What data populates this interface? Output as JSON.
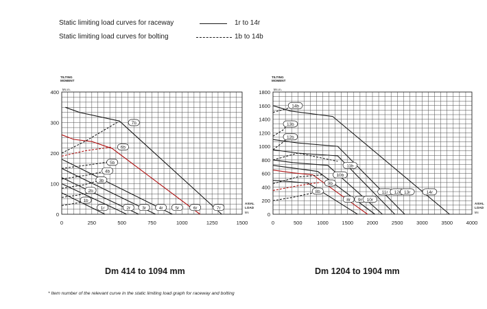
{
  "legend": {
    "raceway_label": "Static limiting load curves for raceway",
    "raceway_range": "1r to 14r",
    "bolting_label": "Static limiting load curves for bolting",
    "bolting_range": "1b to 14b"
  },
  "footnote": "* Item number of the relevant curve in the static limiting load graph for raceway and bolting",
  "colors": {
    "line": "#1a1a1a",
    "highlight": "#b01010",
    "grid": "#4a4a4a"
  },
  "chart_data": [
    {
      "type": "line",
      "title": "Dm 414 to 1094 mm",
      "ylabel": [
        "TILTING",
        "MOMENT"
      ],
      "yunit": "kN.m.",
      "xlabel": [
        "AXIAL",
        "LOAD"
      ],
      "xunit": "kN",
      "xlim": [
        0,
        1500
      ],
      "ylim": [
        0,
        400
      ],
      "x_ticks": [
        0,
        250,
        500,
        750,
        1000,
        1250,
        1500
      ],
      "y_ticks": [
        0,
        100,
        200,
        300,
        400
      ],
      "grid": true,
      "series": [
        {
          "name": "1r",
          "style": "solid",
          "points": [
            [
              0,
              70
            ],
            [
              360,
              0
            ]
          ],
          "label_at": [
            340,
            22
          ]
        },
        {
          "name": "2r",
          "style": "solid",
          "points": [
            [
              0,
              100
            ],
            [
              540,
              0
            ]
          ],
          "label_at": [
            555,
            22
          ]
        },
        {
          "name": "3r",
          "style": "solid",
          "points": [
            [
              0,
              120
            ],
            [
              640,
              0
            ]
          ],
          "label_at": [
            685,
            22
          ]
        },
        {
          "name": "4r",
          "style": "solid",
          "points": [
            [
              0,
              150
            ],
            [
              780,
              0
            ]
          ],
          "label_at": [
            825,
            22
          ]
        },
        {
          "name": "5r",
          "style": "solid",
          "points": [
            [
              0,
              180
            ],
            [
              920,
              0
            ]
          ],
          "label_at": [
            960,
            22
          ]
        },
        {
          "name": "6r",
          "style": "solid",
          "color": "highlight",
          "points": [
            [
              0,
              260
            ],
            [
              100,
              245
            ],
            [
              250,
              238
            ],
            [
              420,
              215
            ],
            [
              1150,
              0
            ]
          ],
          "label_at": [
            1110,
            22
          ]
        },
        {
          "name": "7r",
          "style": "solid",
          "points": [
            [
              30,
              350
            ],
            [
              150,
              333
            ],
            [
              480,
              305
            ],
            [
              1330,
              0
            ]
          ],
          "label_at": [
            1305,
            22
          ]
        },
        {
          "name": "1b",
          "style": "dashed",
          "points": [
            [
              0,
              28
            ],
            [
              100,
              35
            ],
            [
              240,
              44
            ]
          ],
          "label_at": [
            200,
            46
          ]
        },
        {
          "name": "2b",
          "style": "dashed",
          "points": [
            [
              0,
              55
            ],
            [
              140,
              63
            ],
            [
              280,
              76
            ]
          ],
          "label_at": [
            240,
            78
          ]
        },
        {
          "name": "3b",
          "style": "dashed",
          "points": [
            [
              0,
              85
            ],
            [
              180,
              96
            ],
            [
              330,
              112
            ]
          ],
          "label_at": [
            330,
            112
          ]
        },
        {
          "name": "4b",
          "style": "dashed",
          "points": [
            [
              0,
              115
            ],
            [
              210,
              128
            ],
            [
              380,
              142
            ]
          ],
          "label_at": [
            380,
            142
          ]
        },
        {
          "name": "5b",
          "style": "dashed",
          "points": [
            [
              0,
              150
            ],
            [
              250,
              163
            ],
            [
              420,
              173
            ]
          ],
          "label_at": [
            420,
            170
          ]
        },
        {
          "name": "6b",
          "style": "dashed",
          "color": "highlight",
          "points": [
            [
              0,
              190
            ],
            [
              200,
              208
            ],
            [
              420,
              220
            ]
          ],
          "label_at": [
            510,
            220
          ]
        },
        {
          "name": "7b",
          "style": "dashed",
          "points": [
            [
              0,
              200
            ],
            [
              200,
              240
            ],
            [
              480,
              305
            ]
          ],
          "label_at": [
            600,
            300
          ]
        }
      ]
    },
    {
      "type": "line",
      "title": "Dm 1204 to 1904 mm",
      "ylabel": [
        "TILTING",
        "MOMENT"
      ],
      "yunit": "kN.m.",
      "xlabel": [
        "AXIAL",
        "LOAD"
      ],
      "xunit": "kN",
      "xlim": [
        0,
        4000
      ],
      "ylim": [
        0,
        1800
      ],
      "x_ticks": [
        0,
        500,
        1000,
        1500,
        2000,
        2500,
        3000,
        3500,
        4000
      ],
      "y_ticks": [
        0,
        200,
        400,
        600,
        800,
        1000,
        1200,
        1400,
        1600,
        1800
      ],
      "grid": true,
      "series": [
        {
          "name": "8r",
          "style": "solid",
          "points": [
            [
              0,
              500
            ],
            [
              700,
              460
            ],
            [
              1700,
              0
            ]
          ],
          "label_at": [
            1520,
            220
          ]
        },
        {
          "name": "9r",
          "style": "solid",
          "color": "highlight",
          "points": [
            [
              0,
              650
            ],
            [
              400,
              610
            ],
            [
              800,
              580
            ],
            [
              1900,
              0
            ]
          ],
          "label_at": [
            1750,
            220
          ]
        },
        {
          "name": "10r",
          "style": "solid",
          "points": [
            [
              0,
              720
            ],
            [
              500,
              670
            ],
            [
              900,
              630
            ],
            [
              2050,
              0
            ]
          ],
          "label_at": [
            1950,
            220
          ]
        },
        {
          "name": "11r",
          "style": "solid",
          "points": [
            [
              0,
              800
            ],
            [
              400,
              760
            ],
            [
              1100,
              720
            ],
            [
              2200,
              0
            ]
          ],
          "label_at": [
            2250,
            330
          ]
        },
        {
          "name": "12r",
          "style": "solid",
          "points": [
            [
              0,
              950
            ],
            [
              500,
              900
            ],
            [
              1300,
              860
            ],
            [
              2450,
              0
            ]
          ],
          "label_at": [
            2500,
            330
          ]
        },
        {
          "name": "13r",
          "style": "solid",
          "points": [
            [
              0,
              1100
            ],
            [
              500,
              1050
            ],
            [
              1300,
              1000
            ],
            [
              2650,
              0
            ]
          ],
          "label_at": [
            2700,
            330
          ]
        },
        {
          "name": "14r",
          "style": "solid",
          "points": [
            [
              0,
              1600
            ],
            [
              350,
              1520
            ],
            [
              1200,
              1440
            ],
            [
              3550,
              0
            ]
          ],
          "label_at": [
            3150,
            330
          ]
        },
        {
          "name": "8b",
          "style": "dashed",
          "points": [
            [
              0,
              200
            ],
            [
              400,
              250
            ],
            [
              900,
              330
            ]
          ],
          "label_at": [
            900,
            340
          ]
        },
        {
          "name": "9b",
          "style": "dashed",
          "color": "highlight",
          "points": [
            [
              0,
              350
            ],
            [
              500,
              420
            ],
            [
              950,
              470
            ]
          ],
          "label_at": [
            1150,
            460
          ]
        },
        {
          "name": "10b",
          "style": "dashed",
          "points": [
            [
              0,
              450
            ],
            [
              500,
              550
            ],
            [
              1000,
              580
            ]
          ],
          "label_at": [
            1350,
            580
          ]
        },
        {
          "name": "11b",
          "style": "dashed",
          "points": [
            [
              0,
              800
            ],
            [
              500,
              900
            ],
            [
              1300,
              780
            ]
          ],
          "label_at": [
            1550,
            720
          ]
        },
        {
          "name": "12b",
          "style": "dashed",
          "points": [
            [
              0,
              950
            ],
            [
              200,
              1060
            ],
            [
              300,
              1130
            ]
          ],
          "label_at": [
            350,
            1140
          ]
        },
        {
          "name": "13b",
          "style": "dashed",
          "points": [
            [
              0,
              1150
            ],
            [
              200,
              1240
            ],
            [
              300,
              1330
            ]
          ],
          "label_at": [
            350,
            1330
          ]
        },
        {
          "name": "14b",
          "style": "dashed",
          "points": [
            [
              0,
              1500
            ],
            [
              300,
              1560
            ],
            [
              450,
              1600
            ]
          ],
          "label_at": [
            450,
            1600
          ]
        }
      ]
    }
  ]
}
